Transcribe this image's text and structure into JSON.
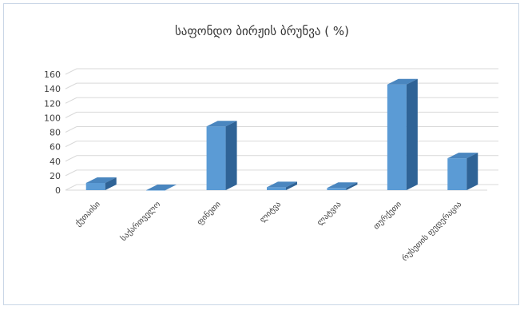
{
  "chart_data": {
    "type": "bar",
    "title": "საფონდო ბირჟის ბრუნვა ( %)",
    "categories": [
      "ქუთაისი",
      "საქართველო",
      "ფინეთი",
      "ლიტვა",
      "ლატვია",
      "თურქეთი",
      "რუსეთის ფედერაცია"
    ],
    "values": [
      10,
      0,
      88,
      4,
      3,
      146,
      44
    ],
    "ylim": [
      0,
      160
    ],
    "yticks": [
      0,
      20,
      40,
      60,
      80,
      100,
      120,
      140,
      160
    ],
    "grid": true,
    "bar_color": "#5b9bd5",
    "bar_top_color": "#4a86bf",
    "bar_side_color": "#2f6396"
  }
}
